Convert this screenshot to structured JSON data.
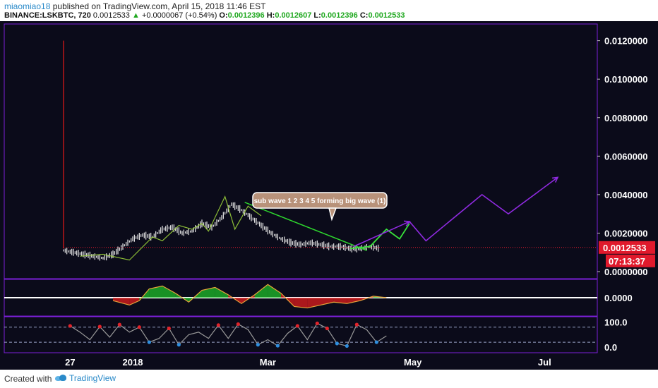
{
  "header": {
    "author": "miaomiao18",
    "published_text": "published on TradingView.com, April 15, 2018 11:46 EST",
    "symbol": "BINANCE:LSKBTC, 720",
    "last": "0.0012533",
    "change": "+0.0000067 (+0.54%)",
    "o_label": "O:",
    "o_value": "0.0012396",
    "h_label": "H:",
    "h_value": "0.0012607",
    "l_label": "L:",
    "l_value": "0.0012396",
    "c_label": "C:",
    "c_value": "0.0012533"
  },
  "footer": {
    "created_with": "Created with",
    "brand": "TradingView"
  },
  "colors": {
    "background": "#0b0b1a",
    "panel_border": "#7b1fd8",
    "candle": "#e8e8e8",
    "price_tag": "#e0192c",
    "projection": "#8f2ae0",
    "subwave": "#39e33b",
    "trendline": "#2ed82e",
    "zigzag": "#9bd23a",
    "vertical_red": "#d41818"
  },
  "chart_data": [
    {
      "type": "line",
      "name": "price",
      "ylim": [
        0,
        0.0125
      ],
      "price_ticks": [
        "0.0120000",
        "0.0100000",
        "0.0080000",
        "0.0060000",
        "0.0040000",
        "0.0020000",
        "0.0000000"
      ],
      "price_tick_values": [
        0.012,
        0.01,
        0.008,
        0.006,
        0.004,
        0.002,
        0.0
      ],
      "x_ticks": [
        "27",
        "2018",
        "Mar",
        "May",
        "Jul"
      ],
      "x_tick_pos": [
        2,
        21,
        62,
        106,
        146
      ],
      "x_max": 180,
      "current_price_label": "0.0012533",
      "current_price": 0.0012533,
      "countdown_label": "07:13:37",
      "annotation": "sub wave 1 2 3 4 5 forming big wave (1)",
      "spike": {
        "x": 0,
        "high": 0.012,
        "low": 0.0012
      },
      "price_series": {
        "x": [
          0,
          3,
          6,
          9,
          12,
          15,
          18,
          21,
          24,
          27,
          30,
          33,
          36,
          39,
          42,
          45,
          48,
          51,
          54,
          57,
          60,
          63,
          66,
          69,
          72,
          75,
          78,
          81,
          84,
          87,
          90,
          93,
          96
        ],
        "y": [
          0.0011,
          0.001,
          0.0009,
          0.0008,
          0.0007,
          0.0009,
          0.0013,
          0.0017,
          0.0019,
          0.0018,
          0.0022,
          0.0023,
          0.002,
          0.0021,
          0.0025,
          0.0023,
          0.0028,
          0.0035,
          0.0032,
          0.0028,
          0.0024,
          0.002,
          0.0017,
          0.0015,
          0.0014,
          0.0015,
          0.0014,
          0.0013,
          0.0013,
          0.0012,
          0.0012,
          0.0013,
          0.0012
        ]
      },
      "zigzag": {
        "x": [
          5,
          12,
          20,
          27,
          30,
          35,
          39,
          42,
          44,
          49,
          52,
          56,
          60
        ],
        "y": [
          0.0008,
          0.0009,
          0.0006,
          0.0018,
          0.0016,
          0.0024,
          0.0022,
          0.0025,
          0.0021,
          0.0039,
          0.0022,
          0.0034,
          0.0029
        ]
      },
      "trendline": {
        "x": [
          55,
          92
        ],
        "y": [
          0.0036,
          0.0011
        ]
      },
      "subwave": {
        "x": [
          87,
          93,
          98,
          102,
          105
        ],
        "y": [
          0.0012,
          0.0013,
          0.0022,
          0.0017,
          0.0025
        ]
      },
      "projection_wave": [
        {
          "x": [
            88,
            105
          ],
          "y": [
            0.0013,
            0.0026
          ]
        },
        {
          "x": [
            105,
            110,
            127,
            135,
            150
          ],
          "y": [
            0.0026,
            0.0016,
            0.004,
            0.003,
            0.0049
          ]
        }
      ]
    },
    {
      "type": "area",
      "name": "oscillator",
      "ylim": [
        -1,
        1
      ],
      "ticks": [
        "0.0000"
      ],
      "tick_values": [
        0
      ],
      "x": [
        15,
        20,
        23,
        26,
        30,
        34,
        38,
        42,
        46,
        50,
        54,
        58,
        62,
        66,
        70,
        74,
        78,
        82,
        86,
        90,
        94,
        98
      ],
      "y": [
        -0.2,
        -0.5,
        -0.2,
        0.6,
        0.8,
        0.3,
        -0.3,
        0.5,
        0.7,
        0.2,
        -0.4,
        0.2,
        0.9,
        0.3,
        -0.6,
        -0.7,
        -0.5,
        -0.3,
        -0.4,
        -0.2,
        0.1,
        0.0
      ]
    },
    {
      "type": "line",
      "name": "rsi",
      "ylim": [
        -5,
        110
      ],
      "ticks": [
        "100.0",
        "0.0"
      ],
      "tick_values": [
        100,
        0
      ],
      "bands": [
        80,
        20
      ],
      "x": [
        2,
        5,
        8,
        11,
        14,
        17,
        20,
        23,
        26,
        29,
        32,
        35,
        38,
        41,
        44,
        47,
        50,
        53,
        56,
        59,
        62,
        65,
        68,
        71,
        74,
        77,
        80,
        83,
        86,
        89,
        92,
        95,
        98
      ],
      "y": [
        85,
        60,
        30,
        82,
        40,
        90,
        60,
        80,
        20,
        35,
        75,
        10,
        50,
        60,
        35,
        88,
        35,
        92,
        70,
        10,
        30,
        6,
        55,
        85,
        30,
        95,
        75,
        15,
        5,
        90,
        70,
        20,
        45
      ]
    }
  ]
}
